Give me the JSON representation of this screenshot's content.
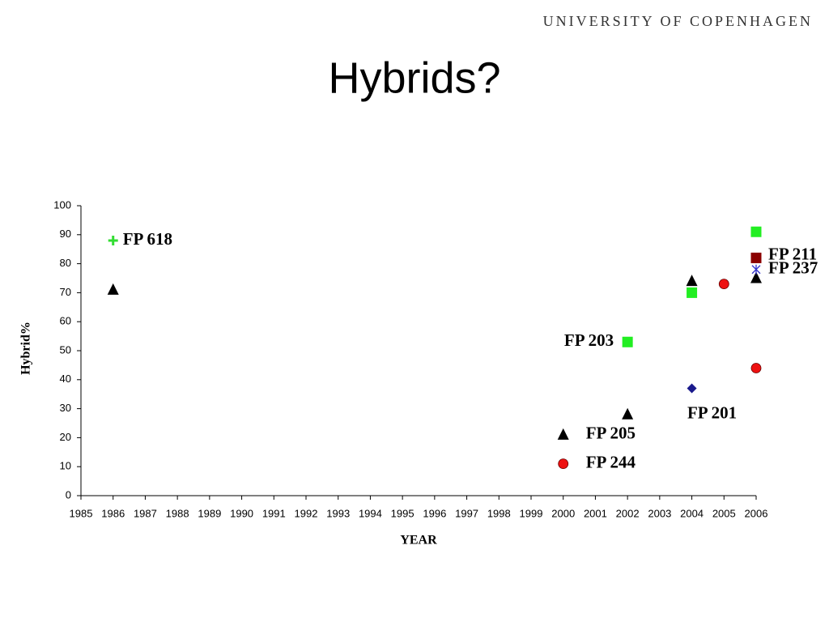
{
  "header": "UNIVERSITY OF COPENHAGEN",
  "chart_data": {
    "type": "scatter",
    "title": "Hybrids?",
    "x_label": "YEAR",
    "y_label": "Hybrid%",
    "xlim": [
      1985,
      2006
    ],
    "xticks": [
      1985,
      1986,
      1987,
      1988,
      1989,
      1990,
      1991,
      1992,
      1993,
      1994,
      1995,
      1996,
      1997,
      1998,
      1999,
      2000,
      2001,
      2002,
      2003,
      2004,
      2005,
      2006
    ],
    "ylim": [
      0,
      100
    ],
    "yticks": [
      0,
      10,
      20,
      30,
      40,
      50,
      60,
      70,
      80,
      90,
      100
    ],
    "series": [
      {
        "name": "FP 618",
        "color": "#33dd33",
        "marker": "plus",
        "x": [
          1986
        ],
        "values": [
          88
        ]
      },
      {
        "name": "FP 205",
        "color": "#000000",
        "marker": "triangle",
        "x": [
          1986,
          2000,
          2002,
          2004,
          2006
        ],
        "values": [
          71,
          21,
          28,
          74,
          75
        ]
      },
      {
        "name": "FP 244",
        "color": "#ee1111",
        "marker": "circle",
        "x": [
          2000,
          2005,
          2006
        ],
        "values": [
          11,
          73,
          44
        ]
      },
      {
        "name": "FP 203",
        "color": "#22ee22",
        "marker": "square",
        "x": [
          2002,
          2004,
          2006
        ],
        "values": [
          53,
          70,
          91
        ]
      },
      {
        "name": "FP 201",
        "color": "#1a1a8c",
        "marker": "diamond",
        "x": [
          2004
        ],
        "values": [
          37
        ]
      },
      {
        "name": "FP 211",
        "color": "#8b0000",
        "marker": "square",
        "x": [
          2006
        ],
        "values": [
          82
        ]
      },
      {
        "name": "FP 237",
        "color": "#3333cc",
        "marker": "star",
        "x": [
          2006
        ],
        "values": [
          78
        ]
      }
    ]
  }
}
